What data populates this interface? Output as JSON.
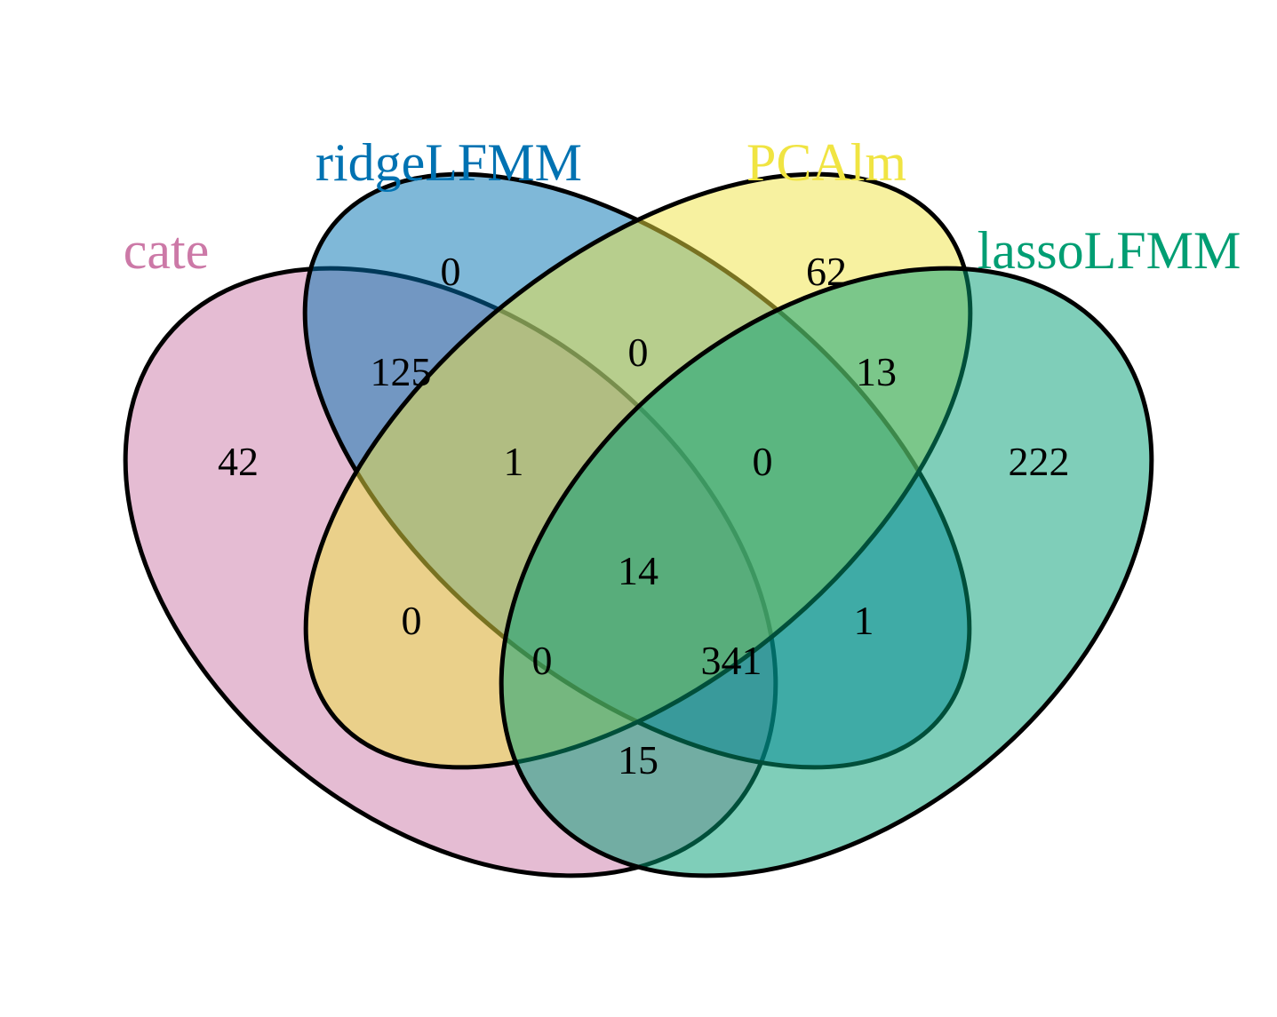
{
  "chart_data": {
    "type": "venn",
    "sets": [
      {
        "name": "cate",
        "color": "#CC79A7"
      },
      {
        "name": "ridgeLFMM",
        "color": "#0072B2"
      },
      {
        "name": "PCAlm",
        "color": "#F0E442"
      },
      {
        "name": "lassoLFMM",
        "color": "#009E73"
      }
    ],
    "regions": [
      {
        "sets": [
          "cate"
        ],
        "count": "42"
      },
      {
        "sets": [
          "ridgeLFMM"
        ],
        "count": "0"
      },
      {
        "sets": [
          "PCAlm"
        ],
        "count": "62"
      },
      {
        "sets": [
          "lassoLFMM"
        ],
        "count": "222"
      },
      {
        "sets": [
          "cate",
          "ridgeLFMM"
        ],
        "count": "125"
      },
      {
        "sets": [
          "ridgeLFMM",
          "PCAlm"
        ],
        "count": "0"
      },
      {
        "sets": [
          "PCAlm",
          "lassoLFMM"
        ],
        "count": "13"
      },
      {
        "sets": [
          "cate",
          "ridgeLFMM",
          "PCAlm"
        ],
        "count": "1"
      },
      {
        "sets": [
          "ridgeLFMM",
          "PCAlm",
          "lassoLFMM"
        ],
        "count": "0"
      },
      {
        "sets": [
          "cate",
          "ridgeLFMM",
          "PCAlm",
          "lassoLFMM"
        ],
        "count": "14"
      },
      {
        "sets": [
          "cate",
          "PCAlm"
        ],
        "count": "0"
      },
      {
        "sets": [
          "ridgeLFMM",
          "lassoLFMM"
        ],
        "count": "1"
      },
      {
        "sets": [
          "cate",
          "PCAlm",
          "lassoLFMM"
        ],
        "count": "0"
      },
      {
        "sets": [
          "cate",
          "ridgeLFMM",
          "lassoLFMM"
        ],
        "count": "341"
      },
      {
        "sets": [
          "cate",
          "lassoLFMM"
        ],
        "count": "15"
      }
    ]
  }
}
